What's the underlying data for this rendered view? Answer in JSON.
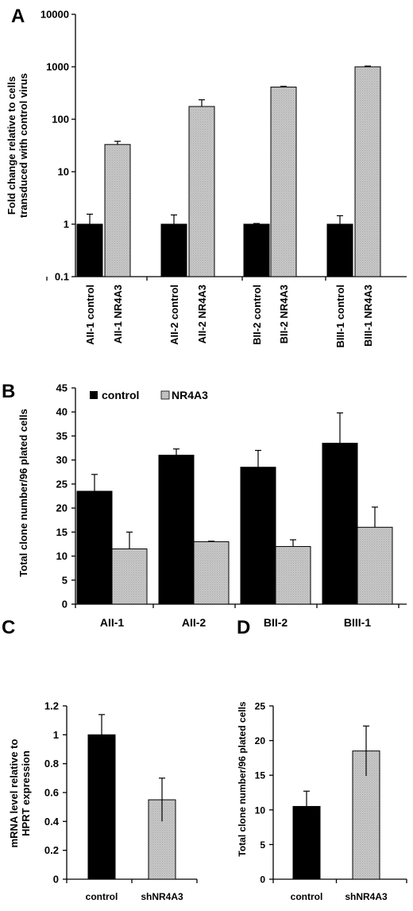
{
  "colors": {
    "control": "#000000",
    "nr4a3": "#c8c8c8",
    "nr4a3_dots": "#a8a8a8"
  },
  "chart_data": [
    {
      "panel_label": "A",
      "type": "bar",
      "log_scale": true,
      "ylabel": "Fold change relative to cells transduced with control virus",
      "ylim": [
        0.1,
        10000
      ],
      "ytick_labels": [
        "0.1",
        "1",
        "10",
        "100",
        "1000",
        "10000"
      ],
      "categories": [
        "AII-1 control",
        "AII-1 NR4A3",
        "AII-2 control",
        "AII-2 NR4A3",
        "BII-2 control",
        "BII-2 NR4A3",
        "BIII-1 control",
        "BIII-1 NR4A3"
      ],
      "values": [
        1,
        33,
        1,
        175,
        1,
        410,
        1,
        1000
      ],
      "error_upper": [
        1.55,
        38,
        1.5,
        235,
        1.03,
        425,
        1.45,
        1030
      ],
      "bar_series": [
        "control",
        "nr4a3",
        "control",
        "nr4a3",
        "control",
        "nr4a3",
        "control",
        "nr4a3"
      ],
      "grid": false
    },
    {
      "panel_label": "B",
      "type": "bar",
      "ylabel": "Total clone number/96 plated cells",
      "ylim": [
        0,
        45
      ],
      "ytick_labels": [
        "0",
        "5",
        "10",
        "15",
        "20",
        "25",
        "30",
        "35",
        "40",
        "45"
      ],
      "categories": [
        "AII-1",
        "AII-2",
        "BII-2",
        "BIII-1"
      ],
      "series": [
        {
          "name": "control",
          "values": [
            23.5,
            31.0,
            28.5,
            33.5
          ],
          "error": [
            3.5,
            1.3,
            3.5,
            6.3
          ]
        },
        {
          "name": "NR4A3",
          "values": [
            11.5,
            13.0,
            12.0,
            16.0
          ],
          "error": [
            3.5,
            0.1,
            1.4,
            4.2
          ]
        }
      ],
      "legend_position": "top-left",
      "grid": false
    },
    {
      "panel_label": "C",
      "type": "bar",
      "ylabel": "mRNA level relative to HPRT expression",
      "ylim": [
        0,
        1.2
      ],
      "ytick_labels": [
        "0",
        "0.2",
        "0.4",
        "0.6",
        "0.8",
        "1",
        "1.2"
      ],
      "categories": [
        "control",
        "shNR4A3"
      ],
      "values": [
        1.0,
        0.55
      ],
      "error": [
        0.14,
        0.15
      ],
      "bar_series": [
        "control",
        "nr4a3"
      ],
      "grid": false
    },
    {
      "panel_label": "D",
      "type": "bar",
      "ylabel": "Total clone number/96 plated cells",
      "ylim": [
        0,
        25
      ],
      "ytick_labels": [
        "0",
        "5",
        "10",
        "15",
        "20",
        "25"
      ],
      "categories": [
        "control",
        "shNR4A3"
      ],
      "values": [
        10.5,
        18.5
      ],
      "error": [
        2.2,
        3.6
      ],
      "bar_series": [
        "control",
        "nr4a3"
      ],
      "grid": false
    }
  ]
}
